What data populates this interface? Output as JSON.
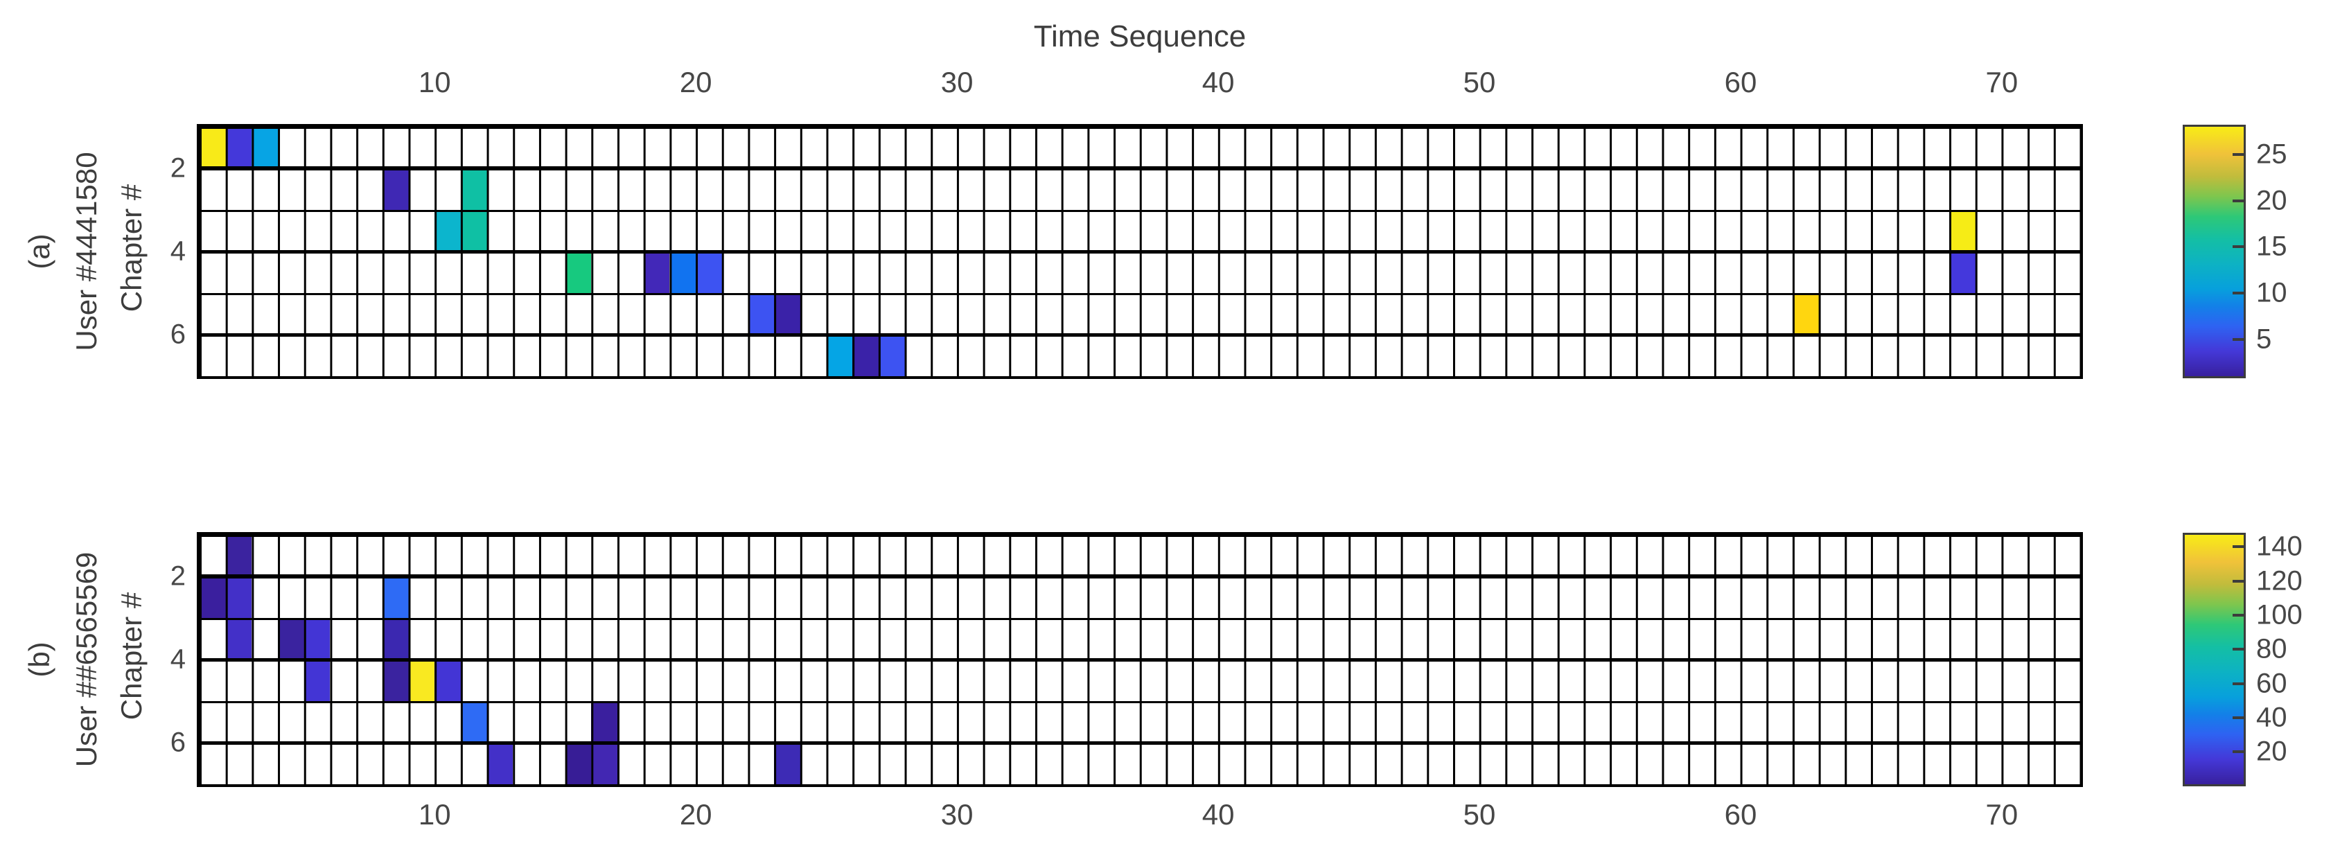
{
  "title": "Time Sequence",
  "parula_stops": [
    "#38209E 0%",
    "#4438D8 10%",
    "#2E63F2 20%",
    "#1380E8 28%",
    "#07A0DC 35%",
    "#0DB2C3 45%",
    "#14BFA4 55%",
    "#2EC877 64%",
    "#7DC64E 72%",
    "#C0BC3C 80%",
    "#F0C23A 89%",
    "#F8EC16 100%"
  ],
  "chart_data": [
    {
      "type": "heatmap",
      "panel_label": "(a)",
      "user_label": "User #4441580",
      "axis_label": "Chapter #",
      "xlabel": "Time Sequence",
      "x_ticks": [
        10,
        20,
        30,
        40,
        50,
        60,
        70
      ],
      "y_ticks": [
        2,
        4,
        6
      ],
      "x_tick_side": "top",
      "n_cols": 72,
      "n_rows": 6,
      "x_range": [
        1,
        73
      ],
      "y_range": [
        1,
        7
      ],
      "colorbar": {
        "min": 1,
        "max": 28,
        "ticks": [
          25,
          20,
          15,
          10,
          5
        ]
      },
      "cells": [
        [
          1,
          1,
          28,
          "#F8EA18"
        ],
        [
          1,
          2,
          4,
          "#4438DA"
        ],
        [
          1,
          3,
          11,
          "#07A4E4"
        ],
        [
          2,
          8,
          2,
          "#3F28B4"
        ],
        [
          2,
          11,
          15,
          "#0FC0A4"
        ],
        [
          3,
          10,
          13,
          "#0CB5CD"
        ],
        [
          3,
          11,
          15,
          "#0FC0A4"
        ],
        [
          3,
          68,
          28,
          "#F6EC16"
        ],
        [
          4,
          15,
          17,
          "#17C97F"
        ],
        [
          4,
          18,
          3,
          "#4228B8"
        ],
        [
          4,
          19,
          8,
          "#1173F0"
        ],
        [
          4,
          20,
          6,
          "#3D53F2"
        ],
        [
          4,
          68,
          4,
          "#4438DC"
        ],
        [
          5,
          22,
          6,
          "#3D53F2"
        ],
        [
          5,
          23,
          2,
          "#3A22A8"
        ],
        [
          5,
          62,
          26,
          "#FFD60F"
        ],
        [
          6,
          25,
          11,
          "#05A5E5"
        ],
        [
          6,
          26,
          2,
          "#3A22A8"
        ],
        [
          6,
          27,
          6,
          "#3D53F2"
        ]
      ]
    },
    {
      "type": "heatmap",
      "panel_label": "(b)",
      "user_label": "User ##6565569",
      "axis_label": "Chapter #",
      "xlabel": "",
      "x_ticks": [
        10,
        20,
        30,
        40,
        50,
        60,
        70
      ],
      "y_ticks": [
        2,
        4,
        6
      ],
      "x_tick_side": "bottom",
      "n_cols": 72,
      "n_rows": 6,
      "x_range": [
        1,
        73
      ],
      "y_range": [
        1,
        7
      ],
      "colorbar": {
        "min": 1,
        "max": 147,
        "ticks": [
          140,
          120,
          100,
          80,
          60,
          40,
          20
        ]
      },
      "cells": [
        [
          1,
          2,
          8,
          "#3B239F"
        ],
        [
          2,
          1,
          7,
          "#3A1F9E"
        ],
        [
          2,
          2,
          13,
          "#4330C8"
        ],
        [
          2,
          8,
          33,
          "#2E6BF5"
        ],
        [
          3,
          2,
          13,
          "#4330C8"
        ],
        [
          3,
          4,
          8,
          "#3A239F"
        ],
        [
          3,
          5,
          14,
          "#4335D5"
        ],
        [
          3,
          8,
          10,
          "#3B28B0"
        ],
        [
          4,
          5,
          14,
          "#4335D5"
        ],
        [
          4,
          8,
          8,
          "#3A239F"
        ],
        [
          4,
          9,
          147,
          "#F9E921"
        ],
        [
          4,
          10,
          14,
          "#4335D5"
        ],
        [
          5,
          11,
          33,
          "#2E6BF5"
        ],
        [
          5,
          16,
          7,
          "#3A1F9E"
        ],
        [
          6,
          12,
          13,
          "#4330C8"
        ],
        [
          6,
          15,
          5,
          "#371D96"
        ],
        [
          6,
          16,
          9,
          "#4227B2"
        ],
        [
          6,
          23,
          10,
          "#3D2BB5"
        ]
      ]
    }
  ]
}
